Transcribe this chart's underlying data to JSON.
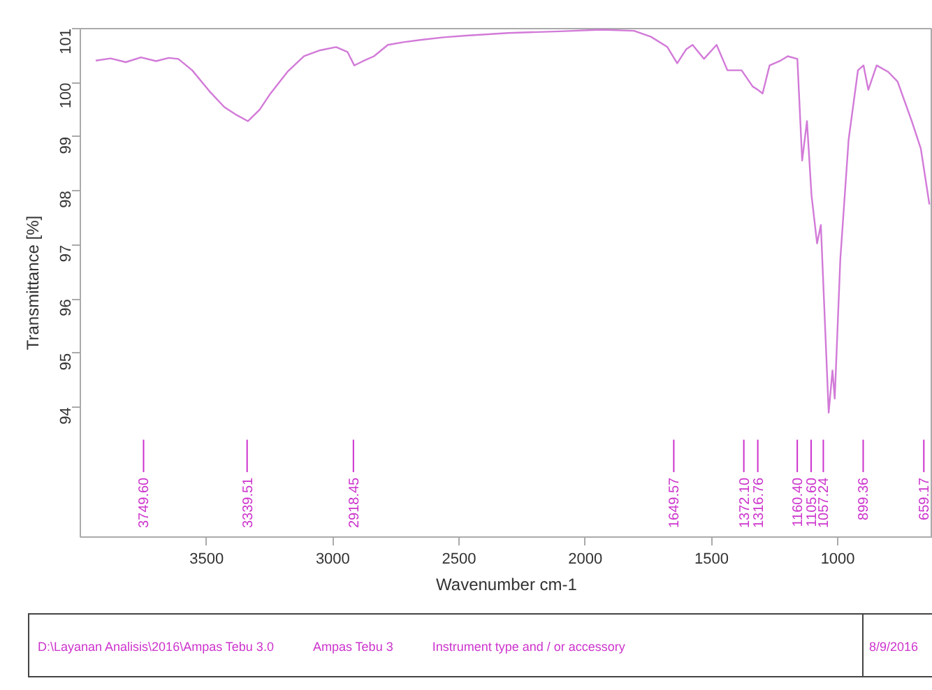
{
  "chart_data": {
    "type": "line",
    "xlabel": "Wavenumber cm-1",
    "ylabel": "Transmittance [%]",
    "x": [
      3939,
      3880,
      3820,
      3760,
      3700,
      3650,
      3612,
      3557,
      3490,
      3430,
      3380,
      3336,
      3290,
      3247,
      3180,
      3114,
      3050,
      2987,
      2942,
      2915,
      2880,
      2837,
      2782,
      2720,
      2655,
      2560,
      2472,
      2306,
      2100,
      1935,
      1807,
      1740,
      1675,
      1636,
      1600,
      1575,
      1530,
      1480,
      1437,
      1381,
      1337,
      1316.76,
      1298,
      1270,
      1230,
      1198,
      1160,
      1141,
      1122,
      1104,
      1082,
      1067,
      1036,
      1021,
      1012,
      990,
      957,
      920,
      898,
      879,
      846,
      800,
      763,
      707,
      671,
      637
    ],
    "series": [
      {
        "color": "#d27ad8",
        "values": [
          100.41,
          100.45,
          100.38,
          100.47,
          100.4,
          100.46,
          100.44,
          100.23,
          99.85,
          99.55,
          99.4,
          99.29,
          99.5,
          99.8,
          100.2,
          100.49,
          100.6,
          100.66,
          100.57,
          100.32,
          100.4,
          100.49,
          100.7,
          100.75,
          100.79,
          100.84,
          100.87,
          100.92,
          100.95,
          100.98,
          100.96,
          100.85,
          100.66,
          100.36,
          100.62,
          100.7,
          100.44,
          100.7,
          100.23,
          100.23,
          99.93,
          99.87,
          99.8,
          100.32,
          100.4,
          100.49,
          100.44,
          98.56,
          99.29,
          97.92,
          97.03,
          97.37,
          93.9,
          94.68,
          94.16,
          96.73,
          98.95,
          100.23,
          100.32,
          99.87,
          100.32,
          100.2,
          100.02,
          99.29,
          98.78,
          97.75
        ]
      }
    ],
    "xlim": [
      4000,
      624
    ],
    "ylim": [
      91.6,
      101
    ],
    "xticks": [
      3500,
      3000,
      2500,
      2000,
      1500,
      1000
    ],
    "yticks": [
      94,
      95,
      96,
      97,
      98,
      99,
      100,
      101
    ],
    "annotations": [
      {
        "text": "3749.60",
        "x": 3749.6
      },
      {
        "text": "3339.51",
        "x": 3339.51
      },
      {
        "text": "2918.45",
        "x": 2918.45
      },
      {
        "text": "1649.57",
        "x": 1649.57
      },
      {
        "text": "1372.10",
        "x": 1372.1
      },
      {
        "text": "1316.76",
        "x": 1316.76
      },
      {
        "text": "1160.40",
        "x": 1160.4
      },
      {
        "text": "1105.60",
        "x": 1105.6
      },
      {
        "text": "1057.24",
        "x": 1057.24
      },
      {
        "text": "899.36",
        "x": 899.36
      },
      {
        "text": "659.17",
        "x": 659.17
      },
      "D:\\Layanan Analisis\\2016\\Ampas Tebu 3.0",
      "Ampas Tebu 3",
      "Instrument type and / or accessory",
      "8/9/2016"
    ]
  }
}
